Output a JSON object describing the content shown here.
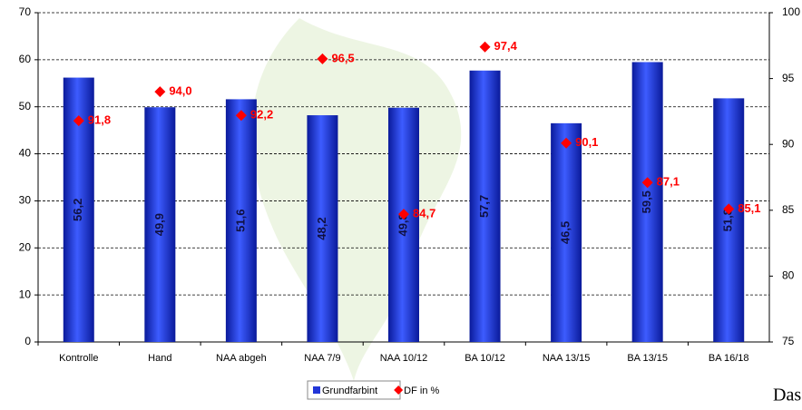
{
  "chart_data": {
    "type": "bar",
    "categories": [
      "Kontrolle",
      "Hand",
      "NAA abgeh",
      "NAA 7/9",
      "NAA 10/12",
      "BA 10/12",
      "NAA 13/15",
      "BA 13/15",
      "BA 16/18"
    ],
    "series": [
      {
        "name": "Grundfarbint",
        "color": "#2236d8",
        "values": [
          56.2,
          49.9,
          51.6,
          48.2,
          49.8,
          57.7,
          46.5,
          59.5,
          51.8
        ],
        "value_labels": [
          "56,2",
          "49,9",
          "51,6",
          "48,2",
          "49,8",
          "57,7",
          "46,5",
          "59,5",
          "51,8"
        ]
      },
      {
        "name": "DF in %",
        "color": "#ff0000",
        "axis": "y2",
        "marker": "diamond",
        "values": [
          91.8,
          94.0,
          92.2,
          96.5,
          84.7,
          97.4,
          90.1,
          87.1,
          85.1
        ],
        "value_labels": [
          "91,8",
          "94,0",
          "92,2",
          "96,5",
          "84,7",
          "97,4",
          "90,1",
          "87,1",
          "85,1"
        ]
      }
    ],
    "ylim": [
      0,
      70
    ],
    "yticks": [
      0,
      10,
      20,
      30,
      40,
      50,
      60,
      70
    ],
    "y2lim": [
      75,
      100
    ],
    "y2ticks": [
      75,
      80,
      85,
      90,
      95,
      100
    ],
    "grid": true,
    "legend": "bottom",
    "watermark": "Das La"
  }
}
